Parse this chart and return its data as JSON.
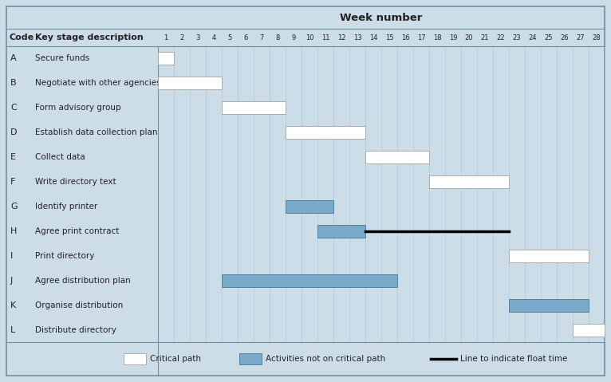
{
  "title": "Week number",
  "weeks": 28,
  "background_color": "#ccdde8",
  "critical_color": "#ffffff",
  "noncritical_color": "#7aaac8",
  "codes": [
    "A",
    "B",
    "C",
    "D",
    "E",
    "F",
    "G",
    "H",
    "I",
    "J",
    "K",
    "L"
  ],
  "descriptions": [
    "Secure funds",
    "Negotiate with other agencies",
    "Form advisory group",
    "Establish data collection plan",
    "Collect data",
    "Write directory text",
    "Identify printer",
    "Agree print contract",
    "Print directory",
    "Agree distribution plan",
    "Organise distribution",
    "Distribute directory"
  ],
  "bars": [
    {
      "code": "A",
      "start": 1,
      "end": 1,
      "type": "critical"
    },
    {
      "code": "B",
      "start": 1,
      "end": 4,
      "type": "critical"
    },
    {
      "code": "C",
      "start": 5,
      "end": 8,
      "type": "critical"
    },
    {
      "code": "D",
      "start": 9,
      "end": 13,
      "type": "critical"
    },
    {
      "code": "E",
      "start": 14,
      "end": 17,
      "type": "critical"
    },
    {
      "code": "F",
      "start": 18,
      "end": 22,
      "type": "critical"
    },
    {
      "code": "G",
      "start": 9,
      "end": 11,
      "type": "noncritical"
    },
    {
      "code": "H",
      "start": 11,
      "end": 13,
      "type": "noncritical"
    },
    {
      "code": "I",
      "start": 23,
      "end": 27,
      "type": "critical"
    },
    {
      "code": "J",
      "start": 5,
      "end": 15,
      "type": "noncritical"
    },
    {
      "code": "K",
      "start": 23,
      "end": 27,
      "type": "noncritical"
    },
    {
      "code": "L",
      "start": 27,
      "end": 28,
      "type": "critical"
    }
  ],
  "float_line": {
    "code": "H",
    "start": 13,
    "end": 22
  },
  "legend_critical_label": "Critical path",
  "legend_noncritical_label": "Activities not on critical path",
  "legend_float_label": "Line to indicate float time",
  "border_color": "#7090a0",
  "grid_color": "#b0c8d8",
  "text_color": "#222222",
  "header_text_color": "#222222"
}
